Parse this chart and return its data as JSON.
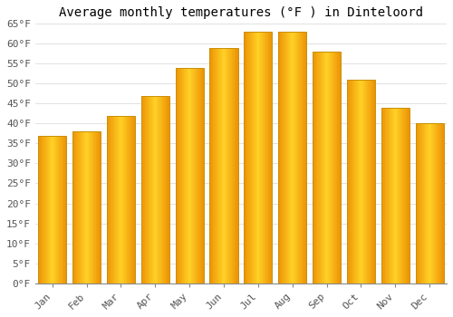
{
  "title": "Average monthly temperatures (°F ) in Dinteloord",
  "months": [
    "Jan",
    "Feb",
    "Mar",
    "Apr",
    "May",
    "Jun",
    "Jul",
    "Aug",
    "Sep",
    "Oct",
    "Nov",
    "Dec"
  ],
  "values": [
    37,
    38,
    42,
    47,
    54,
    59,
    63,
    63,
    58,
    51,
    44,
    40
  ],
  "ylim": [
    0,
    65
  ],
  "yticks": [
    0,
    5,
    10,
    15,
    20,
    25,
    30,
    35,
    40,
    45,
    50,
    55,
    60,
    65
  ],
  "ytick_labels": [
    "0°F",
    "5°F",
    "10°F",
    "15°F",
    "20°F",
    "25°F",
    "30°F",
    "35°F",
    "40°F",
    "45°F",
    "50°F",
    "55°F",
    "60°F",
    "65°F"
  ],
  "background_color": "#ffffff",
  "grid_color": "#dddddd",
  "title_fontsize": 10,
  "tick_fontsize": 8,
  "bar_color_left": "#F0A000",
  "bar_color_center": "#FFD000",
  "bar_color_right": "#F0A800",
  "bar_edge_color": "#C8900A",
  "bar_width": 0.82
}
